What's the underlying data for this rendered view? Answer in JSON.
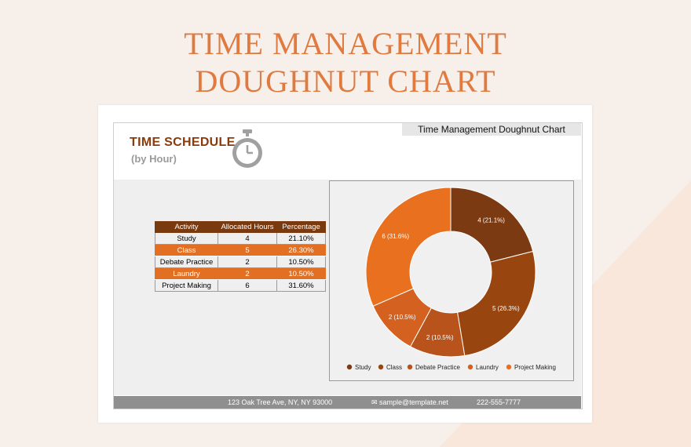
{
  "headline": {
    "line1": "TIME MANAGEMENT",
    "line2": "DOUGHNUT CHART"
  },
  "header": {
    "title": "TIME SCHEDULE",
    "subtitle": "(by Hour)",
    "icon": "stopwatch-icon"
  },
  "chart_title": "Time Management Doughnut Chart",
  "table": {
    "headers": [
      "Activity",
      "Allocated Hours",
      "Percentage"
    ],
    "rows": [
      {
        "activity": "Study",
        "hours": "4",
        "pct": "21.10%"
      },
      {
        "activity": "Class",
        "hours": "5",
        "pct": "26.30%"
      },
      {
        "activity": "Debate Practice",
        "hours": "2",
        "pct": "10.50%"
      },
      {
        "activity": "Laundry",
        "hours": "2",
        "pct": "10.50%"
      },
      {
        "activity": "Project Making",
        "hours": "6",
        "pct": "31.60%"
      }
    ]
  },
  "chart_data": {
    "type": "pie",
    "variant": "doughnut",
    "title": "Time Management Doughnut Chart",
    "categories": [
      "Study",
      "Class",
      "Debate Practice",
      "Laundry",
      "Project Making"
    ],
    "values": [
      4,
      5,
      2,
      2,
      6
    ],
    "data_labels": [
      "4 (21.1%)",
      "5 (26.3%)",
      "2 (10.5%)",
      "2 (10.5%)",
      "6 (31.6%)"
    ],
    "colors": [
      "#7b3a12",
      "#98450f",
      "#b8541b",
      "#d4611f",
      "#e8701f"
    ],
    "legend": "bottom"
  },
  "footer": {
    "address": "123 Oak Tree Ave, NY, NY 93000",
    "email": "✉ sample@template.net",
    "phone": "222-555-7777"
  },
  "colors": {
    "accent": "#e07a3e",
    "header_dark": "#7a3a10",
    "row_alt": "#e36f22"
  }
}
